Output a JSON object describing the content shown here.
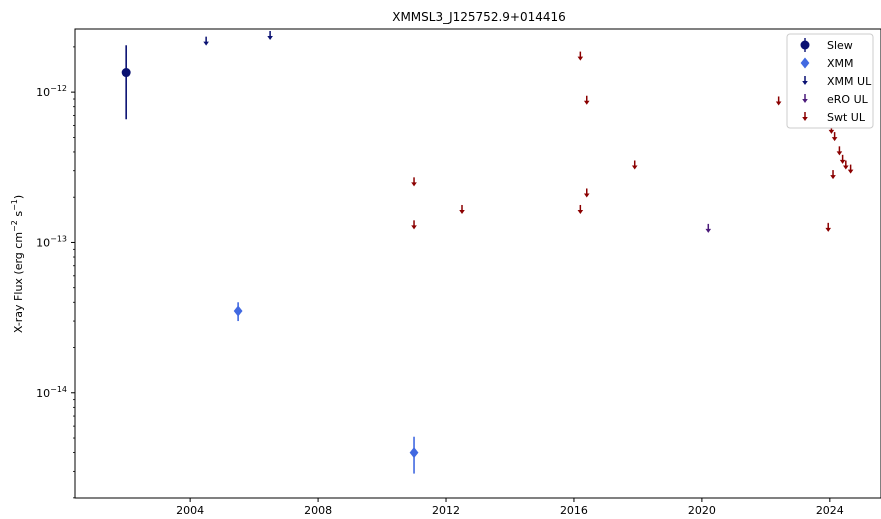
{
  "chart_data": {
    "type": "scatter",
    "title": "XMMSL3_J125752.9+014416",
    "ylabel": "X-ray Flux",
    "ylabel_units": "(erg cm",
    "xlabel": "",
    "xlim": [
      2000.4,
      2025.6
    ],
    "ylim_log10": [
      -14.7,
      -11.58
    ],
    "yscale": "log",
    "x_ticks": [
      2004,
      2008,
      2012,
      2016,
      2020,
      2024
    ],
    "x_tick_labels": [
      "2004",
      "2008",
      "2012",
      "2016",
      "2020",
      "2024"
    ],
    "y_ticks_log10": [
      -14,
      -13,
      -12
    ],
    "y_tick_labels": [
      "10",
      "10",
      "10"
    ],
    "y_tick_exponents": [
      "−14",
      "−13",
      "−12"
    ],
    "legend_position": "top-right",
    "series": [
      {
        "name": "Slew",
        "kind": "point",
        "marker": "circle",
        "color": "#0a1172",
        "points": [
          {
            "x": 2002.0,
            "y": 1.35e-12,
            "ylo": 6.6e-13,
            "yhi": 2.05e-12
          }
        ]
      },
      {
        "name": "XMM",
        "kind": "point",
        "marker": "diamond",
        "color": "#4169e1",
        "points": [
          {
            "x": 2005.5,
            "y": 3.5e-14,
            "ylo": 3e-14,
            "yhi": 4e-14
          },
          {
            "x": 2011.0,
            "y": 4e-15,
            "ylo": 2.9e-15,
            "yhi": 5.1e-15
          }
        ]
      },
      {
        "name": "XMM UL",
        "kind": "upper-limit",
        "color": "#0a1172",
        "points": [
          {
            "x": 2004.5,
            "y": 2.2e-12
          },
          {
            "x": 2006.5,
            "y": 2.4e-12
          }
        ]
      },
      {
        "name": "eRO UL",
        "kind": "upper-limit",
        "color": "#4b1a7a",
        "points": [
          {
            "x": 2020.2,
            "y": 1.25e-13
          }
        ]
      },
      {
        "name": "Swt UL",
        "kind": "upper-limit",
        "color": "#8b0000",
        "points": [
          {
            "x": 2011.0,
            "y": 2.55e-13
          },
          {
            "x": 2011.0,
            "y": 1.32e-13
          },
          {
            "x": 2012.5,
            "y": 1.67e-13
          },
          {
            "x": 2016.2,
            "y": 1.75e-12
          },
          {
            "x": 2016.4,
            "y": 8.9e-13
          },
          {
            "x": 2016.2,
            "y": 1.67e-13
          },
          {
            "x": 2016.4,
            "y": 2.15e-13
          },
          {
            "x": 2017.9,
            "y": 3.3e-13
          },
          {
            "x": 2022.4,
            "y": 8.8e-13
          },
          {
            "x": 2023.95,
            "y": 1.27e-13
          },
          {
            "x": 2024.05,
            "y": 5.7e-13
          },
          {
            "x": 2024.15,
            "y": 5.1e-13
          },
          {
            "x": 2024.1,
            "y": 2.85e-13
          },
          {
            "x": 2024.3,
            "y": 4.1e-13
          },
          {
            "x": 2024.4,
            "y": 3.6e-13
          },
          {
            "x": 2024.5,
            "y": 3.3e-13
          },
          {
            "x": 2024.65,
            "y": 3.1e-13
          }
        ]
      }
    ]
  }
}
